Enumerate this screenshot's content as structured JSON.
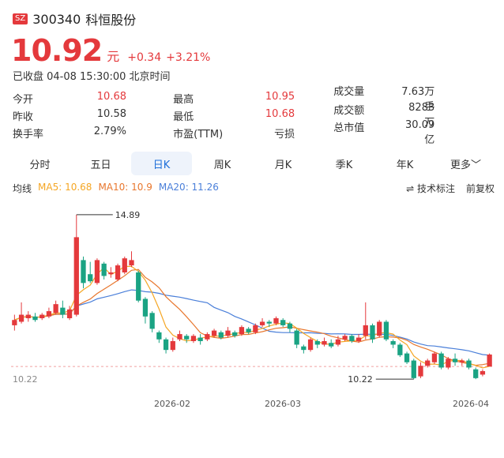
{
  "header": {
    "market_badge": "SZ",
    "code": "300340",
    "name": "科恒股份"
  },
  "price": {
    "value": "10.92",
    "unit": "元",
    "change": "+0.34",
    "change_pct": "+3.21%"
  },
  "status": "已收盘 04-08 15:30:00 北京时间",
  "stats": [
    [
      {
        "label": "今开",
        "value": "10.68",
        "red": true
      },
      {
        "label": "最高",
        "value": "10.95",
        "red": true
      },
      {
        "label": "成交量",
        "value": "7.63万手",
        "red": false
      }
    ],
    [
      {
        "label": "昨收",
        "value": "10.58",
        "red": false
      },
      {
        "label": "最低",
        "value": "10.68",
        "red": true
      },
      {
        "label": "成交额",
        "value": "8283万",
        "red": false
      }
    ],
    [
      {
        "label": "换手率",
        "value": "2.79%",
        "red": false
      },
      {
        "label": "市盈(TTM)",
        "value": "亏损",
        "red": false
      },
      {
        "label": "总市值",
        "value": "30.09亿",
        "red": false
      }
    ]
  ],
  "tabs": [
    "分时",
    "五日",
    "日K",
    "周K",
    "月K",
    "季K",
    "年K",
    "更多"
  ],
  "active_tab": 2,
  "ma": {
    "label": "均线",
    "ma5": "MA5: 10.68",
    "ma10": "MA10: 10.9",
    "ma20": "MA20: 11.26",
    "ma5_color": "#f5a623",
    "ma10_color": "#e8772e",
    "ma20_color": "#4a7fd9"
  },
  "tools": {
    "indicator": "技术标注",
    "adjust": "前复权"
  },
  "chart_data": {
    "type": "candlestick",
    "x_labels": [
      "2026-02",
      "2026-03",
      "2026-04"
    ],
    "max_label": "14.89",
    "min_label": "10.22",
    "left_label": "10.22",
    "ylim": [
      10.0,
      15.2
    ],
    "up_color": "#e4393c",
    "down_color": "#1aa383",
    "candles": [
      [
        11.75,
        11.9,
        12.05,
        11.6
      ],
      [
        11.85,
        12.05,
        12.4,
        11.8
      ],
      [
        11.95,
        12.05,
        12.15,
        11.85
      ],
      [
        12.0,
        11.9,
        12.1,
        11.85
      ],
      [
        11.95,
        12.05,
        12.1,
        11.9
      ],
      [
        12.0,
        12.15,
        12.25,
        11.95
      ],
      [
        12.1,
        12.35,
        12.45,
        12.05
      ],
      [
        12.25,
        12.05,
        12.45,
        11.95
      ],
      [
        11.95,
        12.2,
        12.3,
        11.9
      ],
      [
        12.05,
        14.25,
        14.89,
        12.0
      ],
      [
        13.6,
        12.95,
        13.7,
        12.8
      ],
      [
        13.2,
        13.0,
        13.55,
        12.95
      ],
      [
        12.95,
        13.6,
        13.65,
        12.9
      ],
      [
        13.5,
        13.15,
        13.55,
        13.05
      ],
      [
        13.2,
        13.25,
        13.4,
        13.1
      ],
      [
        13.05,
        13.45,
        13.5,
        13.0
      ],
      [
        13.25,
        13.65,
        13.7,
        13.2
      ],
      [
        13.45,
        13.6,
        13.85,
        13.4
      ],
      [
        13.25,
        12.45,
        13.3,
        12.4
      ],
      [
        12.5,
        12.0,
        12.55,
        11.8
      ],
      [
        12.1,
        11.65,
        12.15,
        11.55
      ],
      [
        11.55,
        11.35,
        11.6,
        11.25
      ],
      [
        11.35,
        11.05,
        11.4,
        10.95
      ],
      [
        11.05,
        11.3,
        11.4,
        11.0
      ],
      [
        11.35,
        11.5,
        11.6,
        11.3
      ],
      [
        11.45,
        11.35,
        11.5,
        11.25
      ],
      [
        11.3,
        11.45,
        11.5,
        11.25
      ],
      [
        11.4,
        11.3,
        11.5,
        11.2
      ],
      [
        11.35,
        11.5,
        11.55,
        11.3
      ],
      [
        11.45,
        11.6,
        11.65,
        11.4
      ],
      [
        11.55,
        11.4,
        11.6,
        11.35
      ],
      [
        11.45,
        11.6,
        11.7,
        11.4
      ],
      [
        11.55,
        11.45,
        11.6,
        11.4
      ],
      [
        11.5,
        11.7,
        11.75,
        11.45
      ],
      [
        11.65,
        11.55,
        11.7,
        11.5
      ],
      [
        11.55,
        11.75,
        11.8,
        11.5
      ],
      [
        11.75,
        11.85,
        11.95,
        11.7
      ],
      [
        11.85,
        11.8,
        11.9,
        11.7
      ],
      [
        11.8,
        11.95,
        12.0,
        11.75
      ],
      [
        11.9,
        11.75,
        11.95,
        11.7
      ],
      [
        11.8,
        11.65,
        11.85,
        11.55
      ],
      [
        11.6,
        11.2,
        11.65,
        11.1
      ],
      [
        11.15,
        11.05,
        11.2,
        10.95
      ],
      [
        11.05,
        11.35,
        11.4,
        11.0
      ],
      [
        11.3,
        11.2,
        11.35,
        11.1
      ],
      [
        11.2,
        11.3,
        11.4,
        11.15
      ],
      [
        11.25,
        11.15,
        11.35,
        11.1
      ],
      [
        11.2,
        11.35,
        11.45,
        11.15
      ],
      [
        11.35,
        11.45,
        11.5,
        11.3
      ],
      [
        11.45,
        11.3,
        11.5,
        11.25
      ],
      [
        11.3,
        11.4,
        11.5,
        11.25
      ],
      [
        11.45,
        11.75,
        12.4,
        11.35
      ],
      [
        11.75,
        11.35,
        11.8,
        11.25
      ],
      [
        11.45,
        11.85,
        11.9,
        11.4
      ],
      [
        11.85,
        11.35,
        11.9,
        11.3
      ],
      [
        11.3,
        11.2,
        11.35,
        11.1
      ],
      [
        11.2,
        10.9,
        11.25,
        10.85
      ],
      [
        10.95,
        10.7,
        11.0,
        10.65
      ],
      [
        10.75,
        10.25,
        10.8,
        10.22
      ],
      [
        10.3,
        10.6,
        10.7,
        10.25
      ],
      [
        10.6,
        10.75,
        10.8,
        10.55
      ],
      [
        10.7,
        10.95,
        11.0,
        10.65
      ],
      [
        10.95,
        10.55,
        11.0,
        10.5
      ],
      [
        10.55,
        10.8,
        10.85,
        10.5
      ],
      [
        10.8,
        10.7,
        10.95,
        10.6
      ],
      [
        10.7,
        10.75,
        10.8,
        10.6
      ],
      [
        10.75,
        10.55,
        10.8,
        10.5
      ],
      [
        10.5,
        10.25,
        10.55,
        10.22
      ],
      [
        10.35,
        10.45,
        10.5,
        10.3
      ],
      [
        10.58,
        10.92,
        10.95,
        10.68
      ]
    ]
  }
}
